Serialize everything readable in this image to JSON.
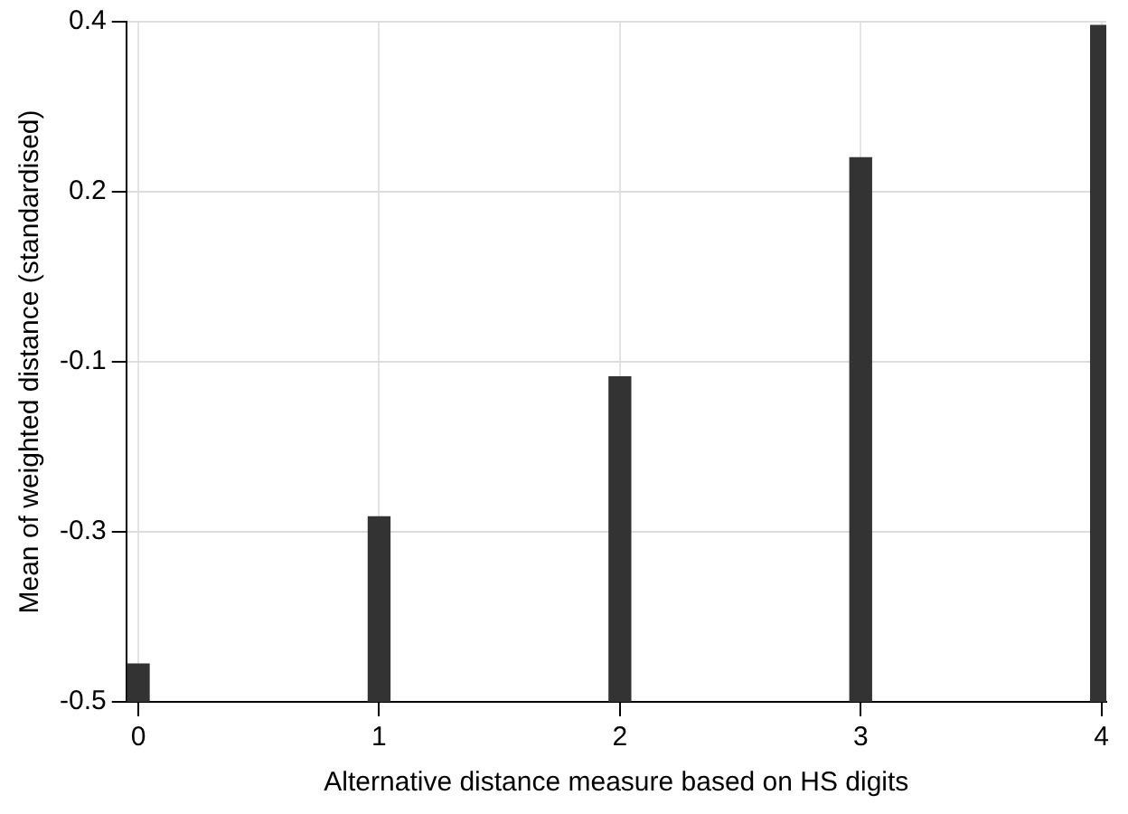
{
  "chart_data": {
    "type": "bar",
    "xlabel": "Alternative distance measure based on HS digits",
    "ylabel": "Mean of weighted distance (standardised)",
    "x": [
      0,
      1,
      2,
      3,
      4
    ],
    "base": [
      -0.5,
      -0.5,
      -0.5,
      -0.5,
      -0.5
    ],
    "values": [
      0.05,
      0.245,
      0.43,
      0.72,
      0.895
    ],
    "color": "#333333",
    "xlim": [
      -0.05,
      4.02
    ],
    "xticks": [
      0,
      1,
      2,
      3,
      4
    ],
    "ylim": [
      -0.5,
      0.4
    ],
    "yticks": [
      {
        "value": -0.5,
        "label": "-0.5"
      },
      {
        "value": -0.275,
        "label": "-0.3"
      },
      {
        "value": -0.05,
        "label": "-0.1"
      },
      {
        "value": 0.175,
        "label": "0.2"
      },
      {
        "value": 0.4,
        "label": "0.4"
      }
    ],
    "grid": true
  }
}
